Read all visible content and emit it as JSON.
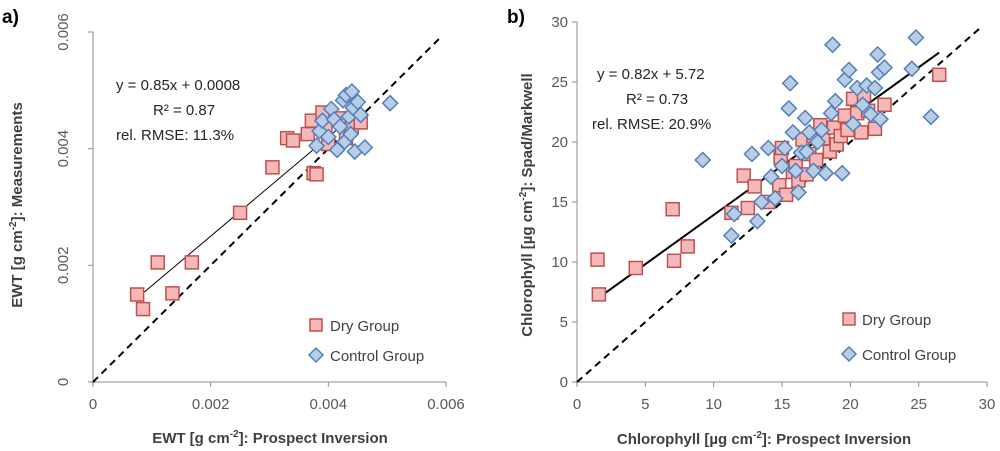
{
  "figure": {
    "panels": [
      {
        "label": "a)",
        "annotation": [
          "y = 0.85x + 0.0008",
          "R² = 0.87",
          "rel. RMSE: 11.3%"
        ],
        "legend": [
          "Dry Group",
          "Control Group"
        ],
        "xlabel_pre": "EWT [g cm",
        "xlabel_sup": "-2",
        "xlabel_post": "]: Prospect Inversion",
        "ylabel_pre": "EWT [g cm",
        "ylabel_sup": "-2",
        "ylabel_post": "]: Measurements"
      },
      {
        "label": "b)",
        "annotation": [
          "y = 0.82x + 5.72",
          "R² = 0.73",
          "rel. RMSE: 20.9%"
        ],
        "legend": [
          "Dry Group",
          "Control Group"
        ],
        "xlabel_pre": "Chlorophyll [µg cm",
        "xlabel_sup": "-2",
        "xlabel_post": "]: Prospect Inversion",
        "ylabel_pre": "Chlorophyll [µg cm",
        "ylabel_sup": "-2",
        "ylabel_post": "]: Spad/Markwell"
      }
    ]
  },
  "chart_data": [
    {
      "type": "scatter",
      "panel": "a)",
      "xlabel": "EWT [g cm-2]: Prospect Inversion",
      "ylabel": "EWT [g cm-2]: Measurements",
      "xlim": [
        0,
        0.006
      ],
      "ylim": [
        0,
        0.006
      ],
      "xticks": [
        0,
        0.002,
        0.004,
        0.006
      ],
      "yticks": [
        0,
        0.002,
        0.004,
        0.006
      ],
      "xtick_labels": [
        "0",
        "0.002",
        "0.004",
        "0.006"
      ],
      "ytick_labels": [
        "0",
        "0.002",
        "0.004",
        "0.006"
      ],
      "legend_position": "bottom-right",
      "fit": {
        "slope": 0.85,
        "intercept": 0.0008,
        "x_range": [
          0.00075,
          0.0045
        ],
        "r2": 0.87,
        "rel_rmse": "11.3%"
      },
      "one_to_one": [
        0,
        0.006
      ],
      "series": [
        {
          "name": "Dry Group",
          "marker": "square",
          "fill": "#f4b8b8",
          "stroke": "#c0504d",
          "points": [
            [
              0.00075,
              0.0015
            ],
            [
              0.00085,
              0.00125
            ],
            [
              0.0011,
              0.00205
            ],
            [
              0.00135,
              0.00152
            ],
            [
              0.00168,
              0.00205
            ],
            [
              0.0025,
              0.0029
            ],
            [
              0.00305,
              0.00368
            ],
            [
              0.0033,
              0.00418
            ],
            [
              0.0034,
              0.00414
            ],
            [
              0.00365,
              0.00425
            ],
            [
              0.00372,
              0.00448
            ],
            [
              0.00375,
              0.00358
            ],
            [
              0.0038,
              0.00356
            ],
            [
              0.0039,
              0.00462
            ],
            [
              0.00395,
              0.0044
            ],
            [
              0.004,
              0.00408
            ],
            [
              0.0042,
              0.00452
            ],
            [
              0.0043,
              0.00418
            ],
            [
              0.0044,
              0.00438
            ],
            [
              0.00455,
              0.00445
            ]
          ]
        },
        {
          "name": "Control Group",
          "marker": "diamond",
          "fill": "#b8cce4",
          "stroke": "#4f81bd",
          "points": [
            [
              0.0038,
              0.00405
            ],
            [
              0.00385,
              0.0043
            ],
            [
              0.0039,
              0.00448
            ],
            [
              0.004,
              0.0042
            ],
            [
              0.00405,
              0.00468
            ],
            [
              0.0041,
              0.0045
            ],
            [
              0.00415,
              0.00398
            ],
            [
              0.0042,
              0.00438
            ],
            [
              0.00425,
              0.00483
            ],
            [
              0.00428,
              0.00412
            ],
            [
              0.0043,
              0.00492
            ],
            [
              0.00435,
              0.00455
            ],
            [
              0.00438,
              0.00425
            ],
            [
              0.0044,
              0.00498
            ],
            [
              0.00442,
              0.0047
            ],
            [
              0.00445,
              0.00395
            ],
            [
              0.0045,
              0.0048
            ],
            [
              0.00455,
              0.00458
            ],
            [
              0.00462,
              0.00402
            ],
            [
              0.00505,
              0.00478
            ]
          ]
        }
      ]
    },
    {
      "type": "scatter",
      "panel": "b)",
      "xlabel": "Chlorophyll [µg cm-2]: Prospect Inversion",
      "ylabel": "Chlorophyll [µg cm-2]: Spad/Markwell",
      "xlim": [
        0,
        30
      ],
      "ylim": [
        0,
        30
      ],
      "xticks": [
        0,
        5,
        10,
        15,
        20,
        25,
        30
      ],
      "yticks": [
        0,
        5,
        10,
        15,
        20,
        25,
        30
      ],
      "xtick_labels": [
        "0",
        "5",
        "10",
        "15",
        "20",
        "25",
        "30"
      ],
      "ytick_labels": [
        "0",
        "5",
        "10",
        "15",
        "20",
        "25",
        "30"
      ],
      "legend_position": "bottom-right",
      "fit": {
        "slope": 0.82,
        "intercept": 5.72,
        "x_range": [
          1.5,
          26.5
        ],
        "r2": 0.73,
        "rel_rmse": "20.9%"
      },
      "one_to_one": [
        0,
        30
      ],
      "series": [
        {
          "name": "Dry Group",
          "marker": "square",
          "fill": "#f4b8b8",
          "stroke": "#c0504d",
          "points": [
            [
              1.5,
              10.2
            ],
            [
              1.6,
              7.3
            ],
            [
              4.3,
              9.5
            ],
            [
              7.0,
              14.4
            ],
            [
              7.1,
              10.1
            ],
            [
              8.1,
              11.3
            ],
            [
              11.3,
              14.1
            ],
            [
              12.2,
              17.2
            ],
            [
              12.5,
              14.5
            ],
            [
              13.0,
              16.3
            ],
            [
              14.0,
              15.0
            ],
            [
              14.8,
              16.4
            ],
            [
              14.9,
              18.7
            ],
            [
              15.0,
              19.5
            ],
            [
              15.3,
              15.6
            ],
            [
              15.8,
              17.5
            ],
            [
              16.0,
              18.0
            ],
            [
              16.2,
              16.8
            ],
            [
              16.5,
              20.2
            ],
            [
              16.8,
              17.3
            ],
            [
              17.0,
              19.0
            ],
            [
              17.3,
              20.5
            ],
            [
              17.5,
              18.5
            ],
            [
              17.8,
              21.4
            ],
            [
              18.0,
              20.3
            ],
            [
              18.5,
              19.2
            ],
            [
              18.8,
              21.2
            ],
            [
              19.0,
              19.8
            ],
            [
              19.3,
              20.5
            ],
            [
              19.6,
              22.2
            ],
            [
              19.8,
              21.0
            ],
            [
              20.2,
              23.6
            ],
            [
              20.5,
              22.4
            ],
            [
              20.8,
              20.8
            ],
            [
              21.0,
              23.9
            ],
            [
              21.3,
              22.6
            ],
            [
              21.8,
              21.1
            ],
            [
              22.5,
              23.1
            ],
            [
              26.5,
              25.6
            ]
          ]
        },
        {
          "name": "Control Group",
          "marker": "diamond",
          "fill": "#b8cce4",
          "stroke": "#4f81bd",
          "points": [
            [
              9.2,
              18.5
            ],
            [
              11.3,
              12.2
            ],
            [
              11.5,
              14.0
            ],
            [
              12.8,
              19.0
            ],
            [
              13.2,
              13.4
            ],
            [
              13.5,
              15.0
            ],
            [
              14.0,
              19.5
            ],
            [
              14.2,
              17.1
            ],
            [
              14.5,
              15.3
            ],
            [
              15.0,
              18.0
            ],
            [
              15.2,
              19.5
            ],
            [
              15.5,
              22.8
            ],
            [
              15.6,
              24.9
            ],
            [
              15.8,
              20.8
            ],
            [
              16.0,
              17.6
            ],
            [
              16.2,
              15.8
            ],
            [
              16.4,
              19.1
            ],
            [
              16.7,
              22.0
            ],
            [
              16.8,
              19.2
            ],
            [
              17.0,
              20.8
            ],
            [
              17.3,
              17.6
            ],
            [
              17.6,
              20.0
            ],
            [
              17.9,
              21.0
            ],
            [
              18.2,
              17.4
            ],
            [
              18.6,
              22.4
            ],
            [
              18.7,
              28.1
            ],
            [
              18.9,
              23.4
            ],
            [
              19.4,
              17.4
            ],
            [
              19.6,
              25.2
            ],
            [
              19.9,
              26.0
            ],
            [
              20.2,
              21.5
            ],
            [
              20.5,
              24.5
            ],
            [
              20.9,
              23.1
            ],
            [
              21.2,
              24.7
            ],
            [
              21.5,
              22.3
            ],
            [
              21.8,
              24.5
            ],
            [
              22.0,
              27.3
            ],
            [
              22.1,
              25.8
            ],
            [
              22.2,
              21.9
            ],
            [
              22.5,
              26.2
            ],
            [
              24.5,
              26.1
            ],
            [
              24.8,
              28.7
            ],
            [
              25.9,
              22.1
            ]
          ]
        }
      ]
    }
  ]
}
